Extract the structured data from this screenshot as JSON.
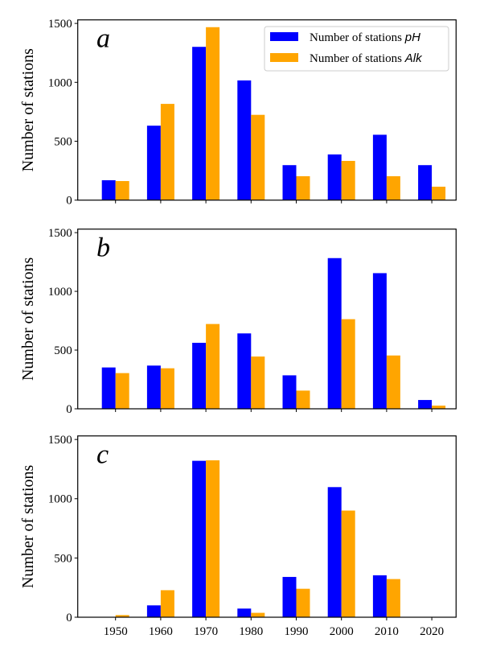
{
  "chart_data": [
    {
      "type": "bar",
      "panel_label": "a",
      "categories": [
        "1950",
        "1960",
        "1970",
        "1980",
        "1990",
        "2000",
        "2010",
        "2020"
      ],
      "series": [
        {
          "name": "Number of stations pH",
          "color": "#0000ff",
          "values": [
            169,
            632,
            1301,
            1016,
            297,
            388,
            555,
            297
          ]
        },
        {
          "name": "Number of stations Alk",
          "color": "#ffa500",
          "values": [
            162,
            817,
            1468,
            724,
            203,
            333,
            203,
            114
          ]
        }
      ],
      "ylabel": "Number of stations",
      "yticks": [
        "0",
        "500",
        "1000",
        "1500"
      ],
      "ylim": [
        0,
        1530
      ],
      "legend": {
        "placement": "top-right",
        "entries": [
          {
            "prefix": "Number of stations ",
            "var": "pH"
          },
          {
            "prefix": "Number of stations ",
            "var": "Alk"
          }
        ]
      }
    },
    {
      "type": "bar",
      "panel_label": "b",
      "categories": [
        "1950",
        "1960",
        "1970",
        "1980",
        "1990",
        "2000",
        "2010",
        "2020"
      ],
      "series": [
        {
          "name": "Number of stations pH",
          "color": "#0000ff",
          "values": [
            352,
            368,
            562,
            642,
            285,
            1283,
            1155,
            75
          ]
        },
        {
          "name": "Number of stations Alk",
          "color": "#ffa500",
          "values": [
            304,
            345,
            722,
            445,
            155,
            763,
            454,
            27
          ]
        }
      ],
      "ylabel": "Number of stations",
      "yticks": [
        "0",
        "500",
        "1000",
        "1500"
      ],
      "ylim": [
        0,
        1530
      ]
    },
    {
      "type": "bar",
      "panel_label": "c",
      "categories": [
        "1950",
        "1960",
        "1970",
        "1980",
        "1990",
        "2000",
        "2010",
        "2020"
      ],
      "series": [
        {
          "name": "Number of stations pH",
          "color": "#0000ff",
          "values": [
            0,
            100,
            1320,
            73,
            340,
            1098,
            354,
            0
          ]
        },
        {
          "name": "Number of stations Alk",
          "color": "#ffa500",
          "values": [
            18,
            228,
            1324,
            37,
            240,
            900,
            322,
            0
          ]
        }
      ],
      "ylabel": "Number of stations",
      "yticks": [
        "0",
        "500",
        "1000",
        "1500"
      ],
      "xticklabels": [
        "1950",
        "1960",
        "1970",
        "1980",
        "1990",
        "2000",
        "2010",
        "2020"
      ],
      "ylim": [
        0,
        1530
      ]
    }
  ]
}
